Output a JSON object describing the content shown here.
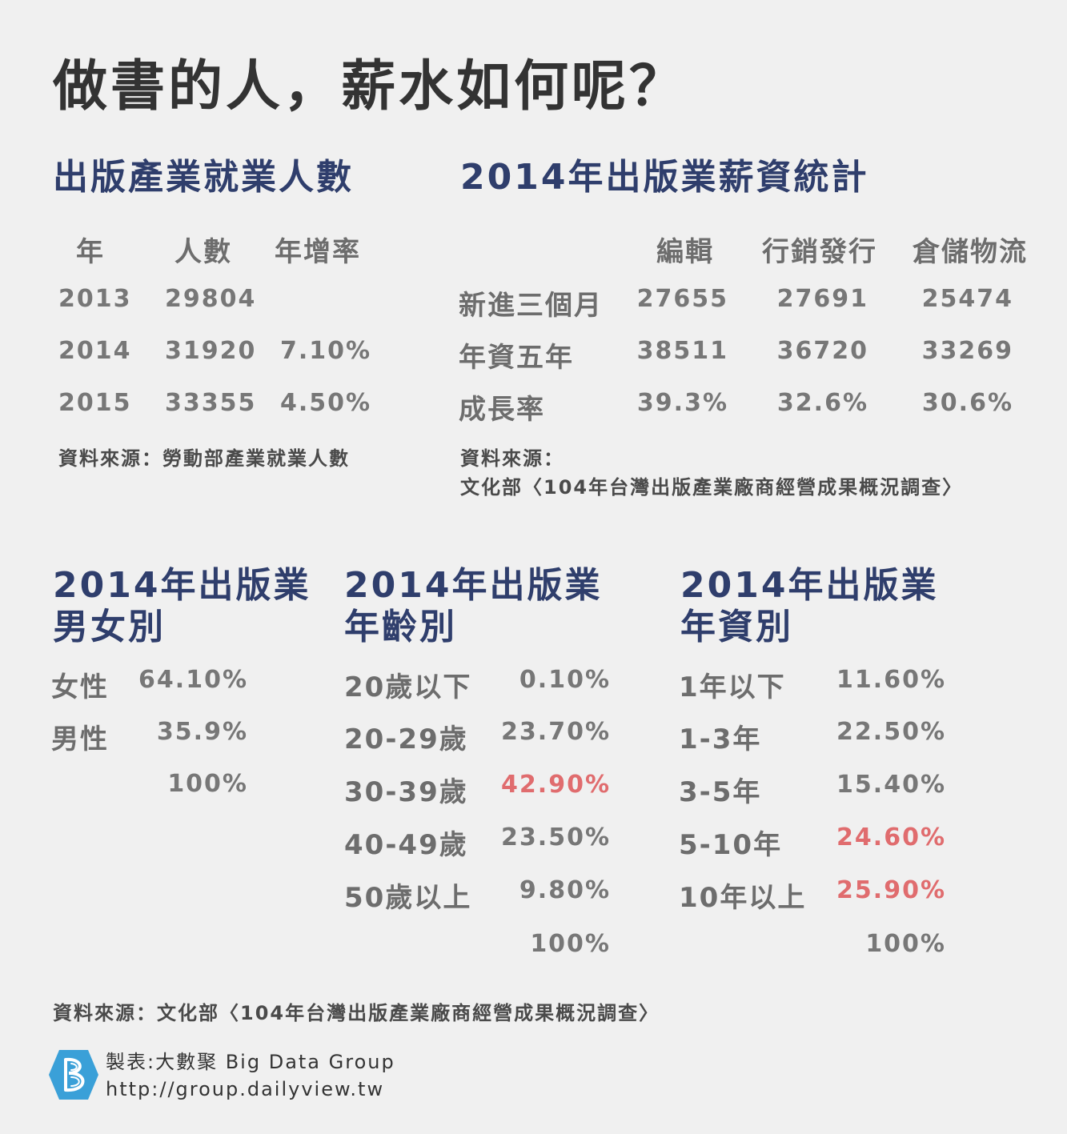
{
  "title": "做書的人，薪水如何呢？",
  "employment": {
    "heading": "出版產業就業人數",
    "headers": [
      "年",
      "人數",
      "年增率"
    ],
    "rows": [
      {
        "year": "2013",
        "count": "29804",
        "rate": ""
      },
      {
        "year": "2014",
        "count": "31920",
        "rate": "7.10%"
      },
      {
        "year": "2015",
        "count": "33355",
        "rate": "4.50%"
      }
    ],
    "source": "資料來源：勞動部產業就業人數"
  },
  "salary": {
    "heading": "2014年出版業薪資統計",
    "headers": [
      "編輯",
      "行銷發行",
      "倉儲物流"
    ],
    "rows": [
      {
        "label": "新進三個月",
        "values": [
          "27655",
          "27691",
          "25474"
        ]
      },
      {
        "label": "年資五年",
        "values": [
          "38511",
          "36720",
          "33269"
        ]
      },
      {
        "label": "成長率",
        "values": [
          "39.3%",
          "32.6%",
          "30.6%"
        ]
      }
    ],
    "source_line1": "資料來源：",
    "source_line2": "文化部〈104年台灣出版產業廠商經營成果概況調查〉"
  },
  "gender": {
    "heading_line1": "2014年出版業",
    "heading_line2": "男女別",
    "rows": [
      {
        "label": "女性",
        "value": "64.10%"
      },
      {
        "label": "男性",
        "value": "35.9%"
      }
    ],
    "total": "100%"
  },
  "age": {
    "heading_line1": "2014年出版業",
    "heading_line2": "年齡別",
    "rows": [
      {
        "label": "20歲以下",
        "value": "0.10%"
      },
      {
        "label": "20-29歲",
        "value": "23.70%"
      },
      {
        "label": "30-39歲",
        "value": "42.90%"
      },
      {
        "label": "40-49歲",
        "value": "23.50%"
      },
      {
        "label": "50歲以上",
        "value": "9.80%"
      }
    ],
    "total": "100%"
  },
  "tenure": {
    "heading_line1": "2014年出版業",
    "heading_line2": "年資別",
    "rows": [
      {
        "label": "1年以下",
        "value": "11.60%"
      },
      {
        "label": "1-3年",
        "value": "22.50%"
      },
      {
        "label": "3-5年",
        "value": "15.40%"
      },
      {
        "label": "5-10年",
        "value": "24.60%"
      },
      {
        "label": "10年以上",
        "value": "25.90%"
      }
    ],
    "total": "100%"
  },
  "colors": {
    "heading": "#2f3e6c",
    "highlight": "#e06c6e",
    "logo": "#3aa0d8"
  },
  "footer": {
    "source": "資料來源：文化部〈104年台灣出版產業廠商經營成果概況調查〉",
    "credit": "製表:大數聚 Big Data Group",
    "url": "http://group.dailyview.tw",
    "logo_icon": "b-hexagon-logo-icon"
  }
}
